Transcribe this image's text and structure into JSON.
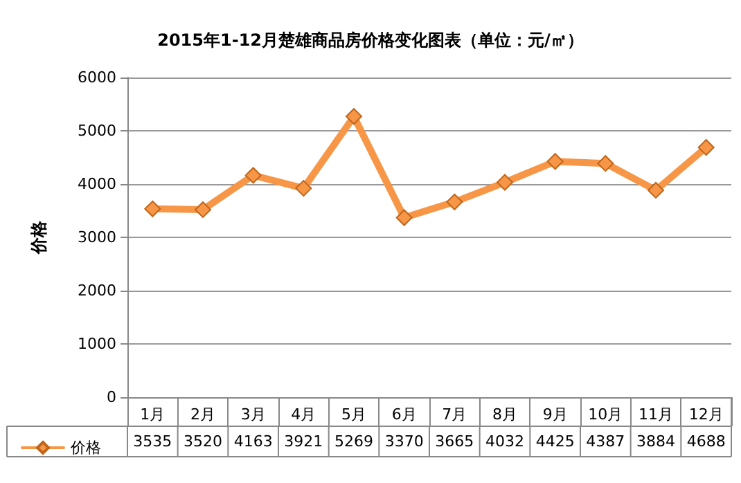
{
  "chart_data": {
    "type": "line",
    "title": "2015年1-12月楚雄商品房价格变化图表（单位：元/㎡）",
    "ylabel": "价格",
    "categories": [
      "1月",
      "2月",
      "3月",
      "4月",
      "5月",
      "6月",
      "7月",
      "8月",
      "9月",
      "10月",
      "11月",
      "12月"
    ],
    "series": [
      {
        "name": "价格",
        "color": "#f79646",
        "values": [
          3535,
          3520,
          4163,
          3921,
          5269,
          3370,
          3665,
          4032,
          4425,
          4387,
          3884,
          4688
        ]
      }
    ],
    "ylim": [
      0,
      6000
    ],
    "yticks": [
      0,
      1000,
      2000,
      3000,
      4000,
      5000,
      6000
    ],
    "grid": "y",
    "legend": "bottom left",
    "marker": "diamond",
    "line_style": "solid",
    "data_labels": true
  }
}
